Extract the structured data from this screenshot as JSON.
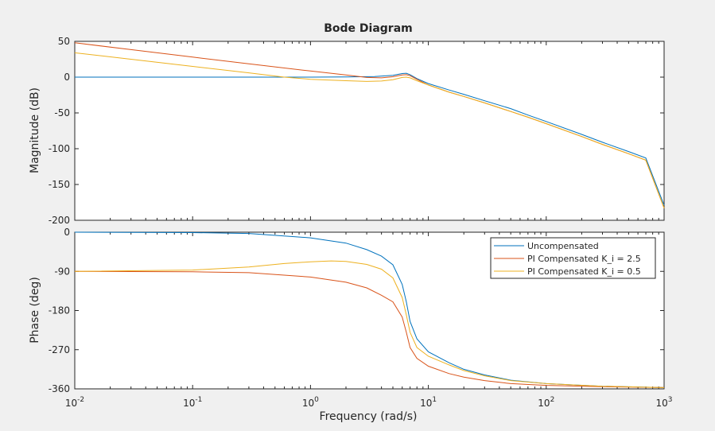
{
  "chart_data": {
    "type": "line",
    "title": "Bode Diagram",
    "xlabel": "Frequency  (rad/s)",
    "x_scale": "log",
    "xlim": [
      0.01,
      1000
    ],
    "x_ticks": [
      {
        "base": "10",
        "exp": "-2"
      },
      {
        "base": "10",
        "exp": "-1"
      },
      {
        "base": "10",
        "exp": "0"
      },
      {
        "base": "10",
        "exp": "1"
      },
      {
        "base": "10",
        "exp": "2"
      },
      {
        "base": "10",
        "exp": "3"
      }
    ],
    "legend_position": "top-right (phase panel)",
    "legend": [
      {
        "label": "Uncompensated",
        "color": "#0072BD"
      },
      {
        "label": "PI Compensated K_i = 2.5",
        "color": "#D95319"
      },
      {
        "label": "PI Compensated K_i = 0.5",
        "color": "#EDB120"
      }
    ],
    "magnitude": {
      "ylabel": "Magnitude (dB)",
      "ylim": [
        -200,
        50
      ],
      "yticks": [
        "50",
        "0",
        "-50",
        "-100",
        "-150",
        "-200"
      ],
      "series": [
        {
          "name": "Uncompensated",
          "color": "#0072BD",
          "points": [
            [
              0.01,
              0
            ],
            [
              0.1,
              0
            ],
            [
              1,
              0
            ],
            [
              2,
              0.2
            ],
            [
              3.5,
              0.8
            ],
            [
              5,
              2.5
            ],
            [
              6,
              5
            ],
            [
              6.5,
              5.5
            ],
            [
              7,
              3.5
            ],
            [
              8,
              -2
            ],
            [
              10,
              -9
            ],
            [
              15,
              -18
            ],
            [
              20,
              -24
            ],
            [
              30,
              -33
            ],
            [
              50,
              -44
            ],
            [
              70,
              -53
            ],
            [
              100,
              -62
            ],
            [
              200,
              -80
            ],
            [
              300,
              -91
            ],
            [
              500,
              -104
            ],
            [
              700,
              -113
            ],
            [
              1000,
              -179
            ]
          ]
        },
        {
          "name": "PI Compensated K_i = 2.5",
          "color": "#D95319",
          "points": [
            [
              0.01,
              48
            ],
            [
              0.03,
              38.5
            ],
            [
              0.1,
              28
            ],
            [
              0.3,
              18.5
            ],
            [
              1,
              8.5
            ],
            [
              2,
              3
            ],
            [
              3,
              -0.5
            ],
            [
              4,
              -1
            ],
            [
              5,
              0.5
            ],
            [
              6,
              3
            ],
            [
              6.5,
              3.5
            ],
            [
              7,
              2
            ],
            [
              8,
              -3
            ],
            [
              10,
              -11
            ],
            [
              15,
              -21
            ],
            [
              20,
              -27
            ],
            [
              30,
              -36
            ],
            [
              50,
              -48
            ],
            [
              70,
              -56
            ],
            [
              100,
              -65
            ],
            [
              200,
              -83
            ],
            [
              300,
              -94
            ],
            [
              500,
              -107
            ],
            [
              700,
              -116
            ],
            [
              1000,
              -183
            ]
          ]
        },
        {
          "name": "PI Compensated K_i = 0.5",
          "color": "#EDB120",
          "points": [
            [
              0.01,
              34
            ],
            [
              0.03,
              25
            ],
            [
              0.1,
              15
            ],
            [
              0.3,
              6
            ],
            [
              0.6,
              0
            ],
            [
              1,
              -3
            ],
            [
              2,
              -5
            ],
            [
              3,
              -6
            ],
            [
              4,
              -5.5
            ],
            [
              5,
              -3.5
            ],
            [
              6,
              -0.5
            ],
            [
              6.5,
              0
            ],
            [
              7,
              -1
            ],
            [
              8,
              -5
            ],
            [
              10,
              -11
            ],
            [
              15,
              -21
            ],
            [
              20,
              -27
            ],
            [
              30,
              -36
            ],
            [
              50,
              -48
            ],
            [
              70,
              -56
            ],
            [
              100,
              -65
            ],
            [
              200,
              -83
            ],
            [
              300,
              -94
            ],
            [
              500,
              -107
            ],
            [
              700,
              -116
            ],
            [
              1000,
              -183
            ]
          ]
        }
      ]
    },
    "phase": {
      "ylabel": "Phase (deg)",
      "ylim": [
        -360,
        0
      ],
      "yticks": [
        "0",
        "-90",
        "-180",
        "-270",
        "-360"
      ],
      "series": [
        {
          "name": "Uncompensated",
          "color": "#0072BD",
          "points": [
            [
              0.01,
              0
            ],
            [
              0.1,
              -1
            ],
            [
              0.3,
              -3
            ],
            [
              1,
              -13
            ],
            [
              2,
              -25
            ],
            [
              3,
              -40
            ],
            [
              4,
              -55
            ],
            [
              5,
              -75
            ],
            [
              6,
              -120
            ],
            [
              6.5,
              -160
            ],
            [
              7,
              -205
            ],
            [
              8,
              -245
            ],
            [
              10,
              -275
            ],
            [
              15,
              -300
            ],
            [
              20,
              -315
            ],
            [
              30,
              -328
            ],
            [
              50,
              -340
            ],
            [
              100,
              -348
            ],
            [
              300,
              -354
            ],
            [
              1000,
              -357
            ]
          ]
        },
        {
          "name": "PI Compensated K_i = 2.5",
          "color": "#D95319",
          "points": [
            [
              0.01,
              -90
            ],
            [
              0.1,
              -91
            ],
            [
              0.3,
              -93
            ],
            [
              1,
              -103
            ],
            [
              2,
              -115
            ],
            [
              3,
              -128
            ],
            [
              4,
              -145
            ],
            [
              5,
              -160
            ],
            [
              6,
              -195
            ],
            [
              6.5,
              -230
            ],
            [
              7,
              -265
            ],
            [
              8,
              -290
            ],
            [
              10,
              -308
            ],
            [
              15,
              -325
            ],
            [
              20,
              -333
            ],
            [
              30,
              -341
            ],
            [
              50,
              -348
            ],
            [
              100,
              -352
            ],
            [
              300,
              -355
            ],
            [
              1000,
              -357
            ]
          ]
        },
        {
          "name": "PI Compensated K_i = 0.5",
          "color": "#EDB120",
          "points": [
            [
              0.01,
              -90
            ],
            [
              0.1,
              -87
            ],
            [
              0.3,
              -80
            ],
            [
              0.6,
              -72
            ],
            [
              1,
              -68
            ],
            [
              1.5,
              -66
            ],
            [
              2,
              -67
            ],
            [
              3,
              -74
            ],
            [
              4,
              -85
            ],
            [
              5,
              -105
            ],
            [
              6,
              -150
            ],
            [
              6.5,
              -190
            ],
            [
              7,
              -230
            ],
            [
              8,
              -265
            ],
            [
              10,
              -285
            ],
            [
              15,
              -305
            ],
            [
              20,
              -318
            ],
            [
              30,
              -330
            ],
            [
              50,
              -341
            ],
            [
              100,
              -348
            ],
            [
              300,
              -354
            ],
            [
              1000,
              -357
            ]
          ]
        }
      ]
    }
  }
}
